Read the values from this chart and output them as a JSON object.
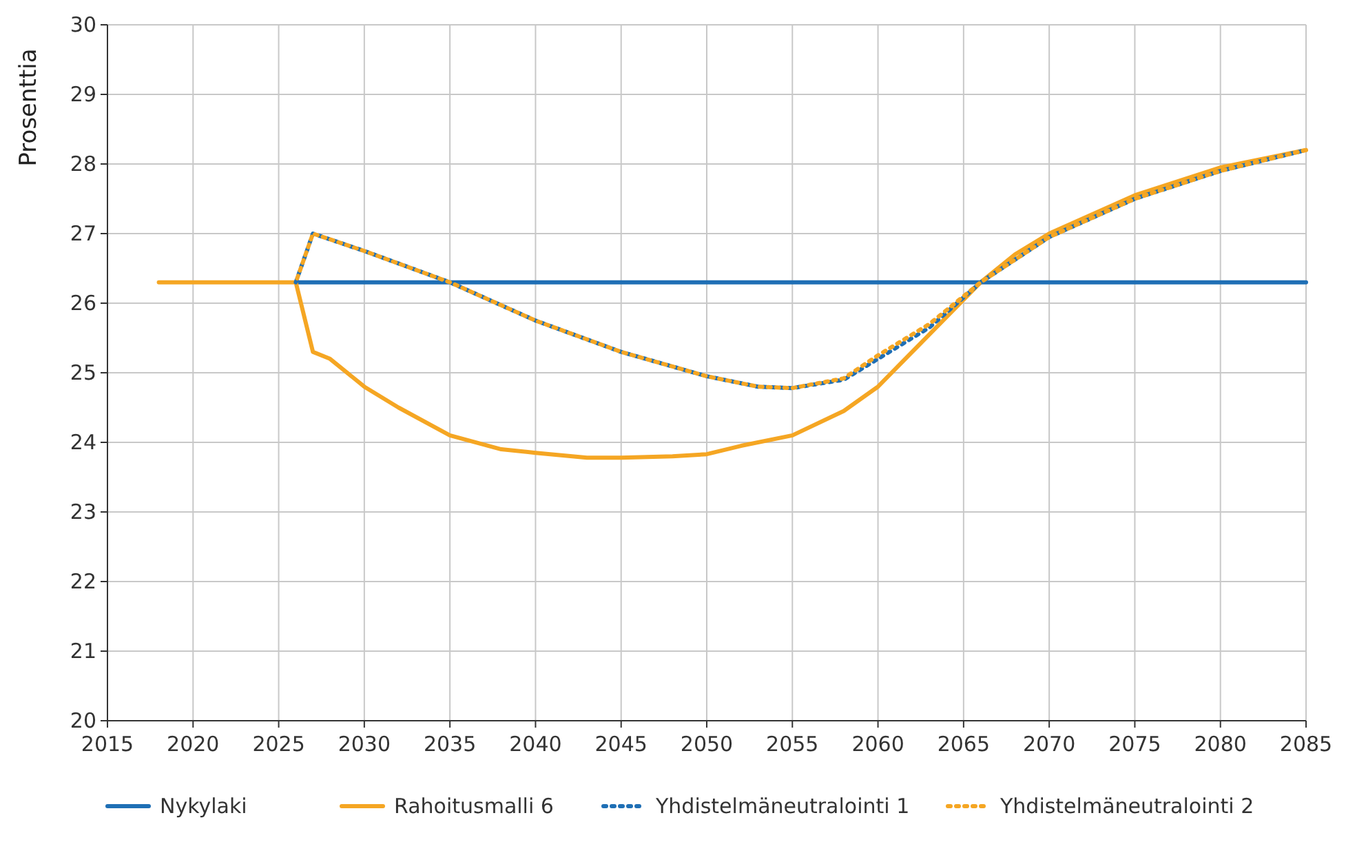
{
  "chart_data": {
    "type": "line",
    "ylabel": "Prosenttia",
    "xlim": [
      2015,
      2085
    ],
    "xticks": [
      2015,
      2020,
      2025,
      2030,
      2035,
      2040,
      2045,
      2050,
      2055,
      2060,
      2065,
      2070,
      2075,
      2080,
      2085
    ],
    "ylim": [
      20,
      30
    ],
    "yticks": [
      20,
      21,
      22,
      23,
      24,
      25,
      26,
      27,
      28,
      29,
      30
    ],
    "grid": true,
    "legend": "bottom",
    "series": [
      {
        "name": "Nykylaki",
        "color": "#1f6fb5",
        "line_style": "solid",
        "x": [
          2026,
          2085
        ],
        "values": [
          26.3,
          26.3
        ]
      },
      {
        "name": "Rahoitusmalli 6",
        "color": "#f5a623",
        "line_style": "solid",
        "x": [
          2018,
          2026,
          2027,
          2028,
          2030,
          2032,
          2035,
          2038,
          2040,
          2043,
          2045,
          2048,
          2050,
          2052,
          2055,
          2058,
          2060,
          2062,
          2064,
          2066,
          2068,
          2070,
          2075,
          2080,
          2085
        ],
        "values": [
          26.3,
          26.3,
          25.3,
          25.2,
          24.8,
          24.5,
          24.1,
          23.9,
          23.85,
          23.78,
          23.78,
          23.8,
          23.83,
          23.95,
          24.1,
          24.45,
          24.8,
          25.3,
          25.8,
          26.3,
          26.7,
          27.0,
          27.55,
          27.95,
          28.2
        ]
      },
      {
        "name": "Yhdistelmäneutralointi 1",
        "color": "#1f6fb5",
        "line_style": "dotted",
        "x": [
          2026,
          2027,
          2030,
          2035,
          2040,
          2045,
          2050,
          2053,
          2055,
          2058,
          2060,
          2063,
          2066,
          2070,
          2075,
          2080,
          2085
        ],
        "values": [
          26.3,
          27.0,
          26.75,
          26.3,
          25.75,
          25.3,
          24.95,
          24.8,
          24.78,
          24.9,
          25.2,
          25.65,
          26.3,
          26.95,
          27.5,
          27.9,
          28.2
        ]
      },
      {
        "name": "Yhdistelmäneutralointi 2",
        "color": "#f5a623",
        "line_style": "dotted",
        "x": [
          2026,
          2027,
          2030,
          2035,
          2040,
          2045,
          2050,
          2053,
          2055,
          2058,
          2060,
          2063,
          2066,
          2070,
          2075,
          2080,
          2085
        ],
        "values": [
          26.3,
          27.0,
          26.75,
          26.3,
          25.75,
          25.3,
          24.95,
          24.8,
          24.78,
          24.92,
          25.25,
          25.7,
          26.3,
          26.95,
          27.5,
          27.9,
          28.2
        ]
      }
    ]
  }
}
